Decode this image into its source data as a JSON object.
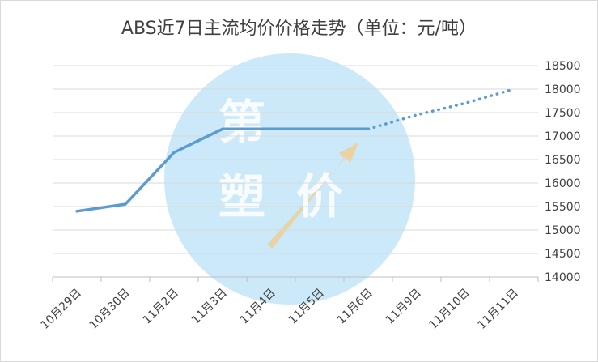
{
  "chart_data": {
    "type": "line",
    "title": "ABS近7日主流均价价格走势（单位：元/吨）",
    "categories": [
      "10月29日",
      "10月30日",
      "11月2日",
      "11月3日",
      "11月4日",
      "11月5日",
      "11月6日",
      "11月9日",
      "11月10日",
      "11月11日"
    ],
    "series": [
      {
        "values": [
          15400,
          15550,
          16650,
          17150,
          17150,
          17150,
          17150,
          null,
          null,
          null
        ],
        "style": "solid"
      },
      {
        "values": [
          null,
          null,
          null,
          null,
          null,
          null,
          17150,
          17450,
          17700,
          18000
        ],
        "style": "dotted"
      }
    ],
    "ylim": [
      14000,
      18500
    ],
    "yticks": [
      14000,
      14500,
      15000,
      15500,
      16000,
      16500,
      17000,
      17500,
      18000,
      18500
    ],
    "y_axis_position": "right",
    "grid": true,
    "legend": "none",
    "line_color": "#5b9bd5",
    "watermark": {
      "chars": [
        "第",
        "塑",
        "价"
      ],
      "color": "#8ccff0"
    }
  }
}
